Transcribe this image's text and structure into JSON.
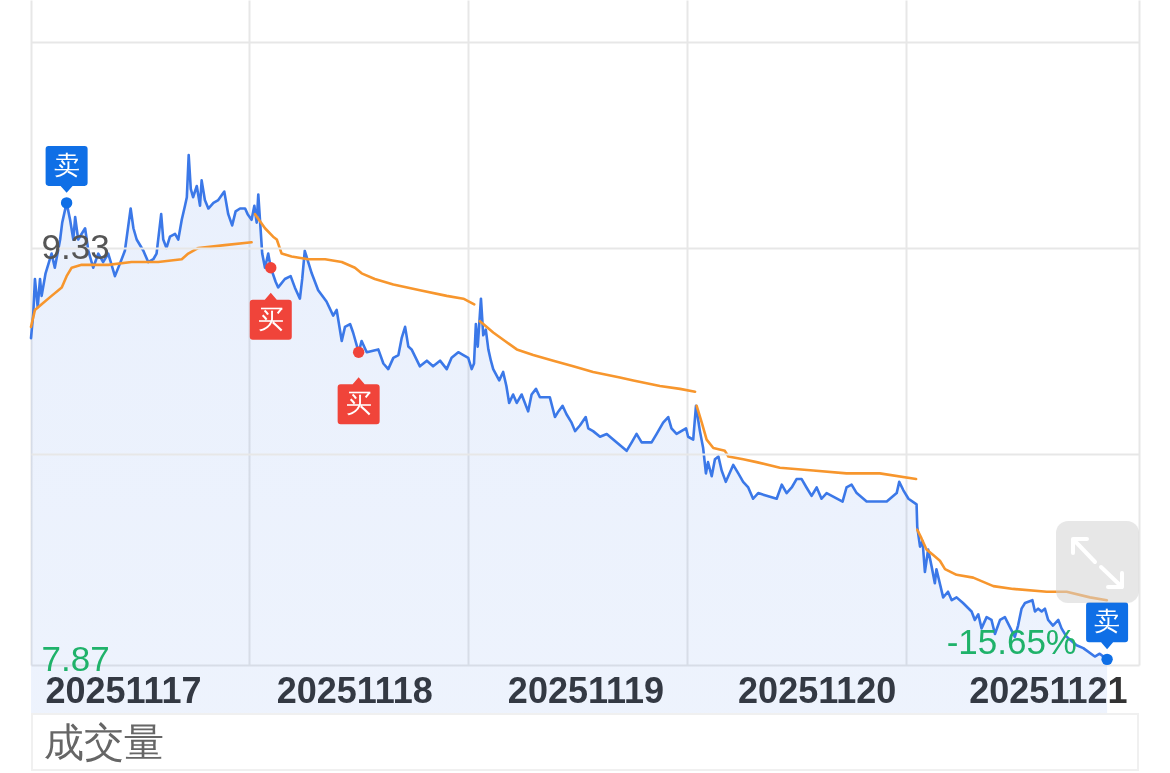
{
  "chart_data": {
    "type": "line",
    "xlim": [
      20251116.602,
      20251121.394
    ],
    "xticks": [
      {
        "value": 20251116.602,
        "label": null
      },
      20251117,
      {
        "value": 20251117.545,
        "label": null
      },
      20251118,
      {
        "value": 20251118.492,
        "label": null
      },
      20251119,
      {
        "value": 20251119.439,
        "label": null
      },
      20251120,
      {
        "value": 20251120.386,
        "label": null
      },
      20251121,
      {
        "value": 20251121.394,
        "label": null
      }
    ],
    "ylim": [
      7.85,
      10.21
    ],
    "yticks": [
      7.87,
      {
        "value": 8.6,
        "label": null
      },
      9.33,
      {
        "value": 10.06,
        "label": null
      }
    ],
    "grid": true,
    "annotations": [
      "-15.65%",
      "成交量"
    ],
    "series": [
      {
        "type": "area",
        "color": "#3b78e8",
        "x": [
          20251116.602,
          20251116.612,
          20251116.619,
          20251116.631,
          20251116.641,
          20251116.648,
          20251116.665,
          20251116.691,
          20251116.705,
          20251116.728,
          20251116.737,
          20251116.756,
          20251116.771,
          20251116.785,
          20251116.793,
          20251116.806,
          20251116.836,
          20251116.85,
          20251116.871,
          20251116.893,
          20251116.914,
          20251116.936,
          20251116.965,
          20251116.994,
          20251117.008,
          20251117.023,
          20251117.033,
          20251117.045,
          20251117.059,
          20251117.088,
          20251117.109,
          20251117.131,
          20251117.145,
          20251117.165,
          20251117.174,
          20251117.188,
          20251117.203,
          20251117.225,
          20251117.239,
          20251117.254,
          20251117.268,
          20251117.276,
          20251117.284,
          20251117.293,
          20251117.303,
          20251117.319,
          20251117.333,
          20251117.34,
          20251117.354,
          20251117.369,
          20251117.391,
          20251117.412,
          20251117.438,
          20251117.455,
          20251117.472,
          20251117.487,
          20251117.506,
          20251117.528,
          20251117.539,
          20251117.556,
          20251117.568,
          20251117.578,
          20251117.585,
          20251117.602,
          20251117.614,
          20251117.628,
          20251117.639,
          20251117.66,
          20251117.671,
          20251117.7,
          20251117.725,
          20251117.743,
          20251117.765,
          20251117.775,
          20251117.786,
          20251117.801,
          20251117.816,
          20251117.844,
          20251117.88,
          20251117.909,
          20251117.924,
          20251117.946,
          20251117.96,
          20251117.982,
          20251117.995,
          20251118.019,
          20251118.032,
          20251118.054,
          20251118.104,
          20251118.126,
          20251118.147,
          20251118.169,
          20251118.191,
          20251118.205,
          20251118.22,
          20251118.234,
          20251118.248,
          20251118.284,
          20251118.314,
          20251118.341,
          20251118.371,
          20251118.4,
          20251118.421,
          20251118.45,
          20251118.472,
          20251118.493,
          20251118.508,
          20251118.518,
          20251118.526,
          20251118.534,
          20251118.548,
          20251118.558,
          20251118.569,
          20251118.58,
          20251118.591,
          20251118.601,
          20251118.627,
          20251118.644,
          20251118.658,
          20251118.67,
          20251118.687,
          20251118.703,
          20251118.724,
          20251118.752,
          20251118.767,
          20251118.786,
          20251118.803,
          20251118.846,
          20251118.868,
          20251118.883,
          20251118.901,
          20251118.918,
          20251118.94,
          20251118.955,
          20251118.976,
          20251119.001,
          20251119.012,
          20251119.033,
          20251119.063,
          20251119.092,
          20251119.12,
          20251119.178,
          20251119.2,
          20251119.221,
          20251119.243,
          20251119.286,
          20251119.308,
          20251119.336,
          20251119.358,
          20251119.372,
          20251119.394,
          20251119.435,
          20251119.444,
          20251119.466,
          20251119.478,
          20251119.495,
          20251119.509,
          20251119.521,
          20251119.53,
          20251119.546,
          20251119.56,
          20251119.575,
          20251119.589,
          20251119.607,
          20251119.639,
          20251119.661,
          20251119.682,
          20251119.704,
          20251119.725,
          20251119.747,
          20251119.827,
          20251119.849,
          20251119.87,
          20251119.892,
          20251119.913,
          20251119.935,
          20251119.956,
          20251119.978,
          20251120.0,
          20251120.021,
          20251120.043,
          20251120.112,
          20251120.129,
          20251120.151,
          20251120.173,
          20251120.216,
          20251120.303,
          20251120.346,
          20251120.357,
          20251120.375,
          20251120.397,
          20251120.432,
          20251120.435,
          20251120.447,
          20251120.458,
          20251120.468,
          20251120.482,
          20251120.497,
          20251120.511,
          20251120.518,
          20251120.547,
          20251120.568,
          20251120.584,
          20251120.605,
          20251120.633,
          20251120.67,
          20251120.684,
          20251120.699,
          20251120.713,
          20251120.735,
          20251120.756,
          20251120.771,
          20251120.793,
          20251120.814,
          20251120.857,
          20251120.871,
          20251120.886,
          20251120.901,
          20251120.933,
          20251120.944,
          20251120.958,
          20251120.973,
          20251120.987,
          20251121.001,
          20251121.022,
          20251121.045,
          20251121.059,
          20251121.081,
          20251121.124,
          20251121.153,
          20251121.203,
          20251121.224,
          20251121.256
        ],
        "values": [
          9.01,
          9.1,
          9.22,
          9.12,
          9.22,
          9.16,
          9.24,
          9.31,
          9.26,
          9.36,
          9.42,
          9.49,
          9.43,
          9.36,
          9.44,
          9.36,
          9.4,
          9.32,
          9.26,
          9.31,
          9.28,
          9.31,
          9.23,
          9.29,
          9.32,
          9.41,
          9.47,
          9.4,
          9.36,
          9.32,
          9.28,
          9.29,
          9.31,
          9.45,
          9.36,
          9.33,
          9.37,
          9.38,
          9.36,
          9.43,
          9.48,
          9.51,
          9.66,
          9.54,
          9.51,
          9.55,
          9.48,
          9.57,
          9.5,
          9.47,
          9.49,
          9.5,
          9.53,
          9.45,
          9.41,
          9.46,
          9.47,
          9.47,
          9.45,
          9.43,
          9.48,
          9.42,
          9.52,
          9.31,
          9.26,
          9.31,
          9.26,
          9.21,
          9.19,
          9.22,
          9.23,
          9.19,
          9.15,
          9.22,
          9.32,
          9.28,
          9.24,
          9.18,
          9.14,
          9.09,
          9.11,
          9.0,
          9.05,
          9.06,
          9.03,
          8.96,
          9.0,
          8.96,
          8.97,
          8.92,
          8.9,
          8.94,
          8.95,
          9.01,
          9.05,
          8.98,
          8.97,
          8.91,
          8.93,
          8.91,
          8.93,
          8.9,
          8.94,
          8.96,
          8.95,
          8.94,
          8.9,
          8.92,
          9.06,
          8.98,
          9.15,
          9.02,
          9.04,
          8.97,
          8.93,
          8.9,
          8.86,
          8.89,
          8.84,
          8.78,
          8.81,
          8.78,
          8.81,
          8.75,
          8.81,
          8.83,
          8.8,
          8.8,
          8.73,
          8.75,
          8.77,
          8.74,
          8.71,
          8.68,
          8.7,
          8.73,
          8.69,
          8.68,
          8.66,
          8.67,
          8.65,
          8.61,
          8.64,
          8.67,
          8.64,
          8.64,
          8.67,
          8.71,
          8.73,
          8.69,
          8.67,
          8.69,
          8.66,
          8.65,
          8.77,
          8.68,
          8.62,
          8.53,
          8.57,
          8.52,
          8.58,
          8.59,
          8.54,
          8.5,
          8.56,
          8.53,
          8.5,
          8.48,
          8.44,
          8.46,
          8.44,
          8.49,
          8.46,
          8.48,
          8.51,
          8.51,
          8.48,
          8.45,
          8.48,
          8.44,
          8.46,
          8.43,
          8.48,
          8.49,
          8.46,
          8.43,
          8.43,
          8.46,
          8.5,
          8.47,
          8.44,
          8.42,
          8.34,
          8.27,
          8.29,
          8.18,
          8.26,
          8.2,
          8.14,
          8.19,
          8.09,
          8.11,
          8.08,
          8.09,
          8.07,
          8.04,
          8.01,
          8.03,
          7.98,
          8.02,
          8.01,
          7.96,
          8.01,
          8.02,
          7.95,
          7.99,
          8.05,
          8.07,
          8.08,
          8.04,
          8.05,
          8.04,
          8.05,
          8.01,
          7.99,
          8.01,
          7.98,
          7.95,
          7.92,
          7.91,
          7.88,
          7.89,
          7.87
        ]
      },
      {
        "color": "#f7962d",
        "x": [
          20251116.602,
          20251116.619,
          20251116.648,
          20251116.691,
          20251116.735,
          20251116.756,
          20251116.778,
          20251116.821,
          20251116.936,
          20251117.037,
          20251117.152,
          20251117.254,
          20251117.282,
          20251117.326,
          20251117.44,
          20251117.556,
          20251117.56,
          20251117.571,
          20251117.614,
          20251117.649,
          20251117.665,
          20251117.686,
          20251117.729,
          20251117.801,
          20251117.874,
          20251117.946,
          20251118.003,
          20251118.032,
          20251118.089,
          20251118.169,
          20251118.284,
          20251118.4,
          20251118.472,
          20251118.519,
          20251118.528,
          20251118.543,
          20251118.558,
          20251118.601,
          20251118.652,
          20251118.703,
          20251118.774,
          20251118.861,
          20251118.947,
          20251119.033,
          20251119.149,
          20251119.207,
          20251119.322,
          20251119.409,
          20251119.474,
          20251119.477,
          20251119.481,
          20251119.503,
          20251119.524,
          20251119.553,
          20251119.603,
          20251119.618,
          20251119.682,
          20251119.74,
          20251119.841,
          20251119.985,
          20251120.129,
          20251120.273,
          20251120.43,
          20251120.433,
          20251120.435,
          20251120.453,
          20251120.475,
          20251120.504,
          20251120.533,
          20251120.555,
          20251120.605,
          20251120.677,
          20251120.764,
          20251120.85,
          20251120.995,
          20251121.081,
          20251121.182,
          20251121.255
        ],
        "values": [
          9.05,
          9.11,
          9.13,
          9.16,
          9.19,
          9.23,
          9.26,
          9.27,
          9.27,
          9.28,
          9.28,
          9.29,
          9.31,
          9.33,
          9.34,
          9.35,
          null,
          9.45,
          9.4,
          9.37,
          9.36,
          9.31,
          9.3,
          9.29,
          9.29,
          9.28,
          9.26,
          9.24,
          9.22,
          9.2,
          9.18,
          9.16,
          9.15,
          9.13,
          null,
          9.07,
          9.06,
          9.03,
          9.0,
          8.97,
          8.95,
          8.93,
          8.91,
          8.89,
          8.87,
          8.86,
          8.84,
          8.83,
          8.82,
          null,
          8.77,
          8.71,
          8.65,
          8.62,
          8.61,
          8.59,
          8.58,
          8.57,
          8.55,
          8.54,
          8.53,
          8.53,
          8.51,
          null,
          8.33,
          8.3,
          8.26,
          8.24,
          8.22,
          8.19,
          8.17,
          8.16,
          8.13,
          8.12,
          8.11,
          8.11,
          8.09,
          8.08
        ]
      },
      {
        "type": "scatter",
        "name": "卖",
        "color": "#0f6fe6",
        "marker": "circle",
        "x": [
          20251116.756,
          20251121.256
        ],
        "values": [
          9.49,
          7.87
        ]
      },
      {
        "type": "scatter",
        "name": "买",
        "color": "#f0443a",
        "marker": "circle",
        "x": [
          20251117.639,
          20251118.019
        ],
        "values": [
          9.26,
          8.96
        ]
      }
    ]
  }
}
